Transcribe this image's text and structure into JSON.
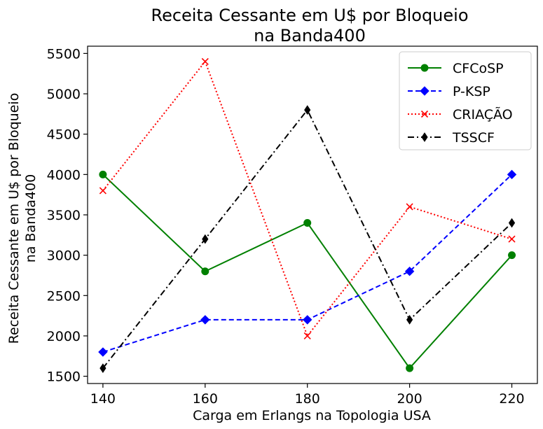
{
  "chart_data": {
    "type": "line",
    "title": [
      "Receita Cessante em U$ por Bloqueio",
      "na Banda400"
    ],
    "xlabel": "Carga em Erlangs na Topologia USA",
    "ylabel": [
      "Receita Cessante em U$ por Bloqueio",
      "na Banda400"
    ],
    "x": [
      140,
      160,
      180,
      200,
      220
    ],
    "xticks": [
      "140",
      "160",
      "180",
      "200",
      "220"
    ],
    "yticks": [
      "1500",
      "2000",
      "2500",
      "3000",
      "3500",
      "4000",
      "4500",
      "5000",
      "5500"
    ],
    "xlim": [
      137,
      225
    ],
    "ylim": [
      1410,
      5590
    ],
    "grid": false,
    "legend_position": "top-right",
    "series": [
      {
        "name": "CFCoSP",
        "values": [
          4000,
          2800,
          3400,
          1600,
          3000
        ],
        "color": "#008000",
        "line": "solid",
        "marker": "circle"
      },
      {
        "name": "P-KSP",
        "values": [
          1800,
          2200,
          2200,
          2800,
          4000
        ],
        "color": "#0000ff",
        "line": "dashed",
        "marker": "diamond"
      },
      {
        "name": "CRIAÇÃO",
        "values": [
          3800,
          5400,
          2000,
          3600,
          3200
        ],
        "color": "#ff0000",
        "line": "dotted",
        "marker": "x"
      },
      {
        "name": "TSSCF",
        "values": [
          1600,
          3200,
          4800,
          2200,
          3400
        ],
        "color": "#000000",
        "line": "dashdot",
        "marker": "thin-diamond"
      }
    ]
  }
}
